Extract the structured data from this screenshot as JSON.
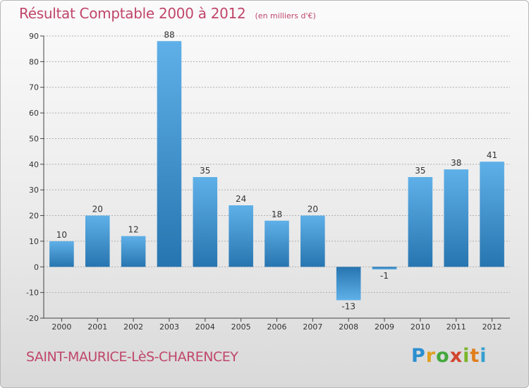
{
  "header": {
    "title": "Résultat Comptable 2000 à 2012",
    "unit": "(en milliers d'€)"
  },
  "footer": {
    "commune": "SAINT-MAURICE-LèS-CHARENCEY",
    "logo": [
      "P",
      "r",
      "o",
      "x",
      "i",
      "t",
      "i"
    ]
  },
  "colors": {
    "title": "#c0466a",
    "bar_top": "#5fb0e8",
    "bar_bottom": "#2775b0",
    "grid": "#b0b0b0"
  },
  "chart_data": {
    "type": "bar",
    "title": "Résultat Comptable 2000 à 2012",
    "xlabel": "",
    "ylabel": "(en milliers d'€)",
    "categories": [
      "2000",
      "2001",
      "2002",
      "2003",
      "2004",
      "2005",
      "2006",
      "2007",
      "2008",
      "2009",
      "2010",
      "2011",
      "2012"
    ],
    "values": [
      10,
      20,
      12,
      88,
      35,
      24,
      18,
      20,
      -13,
      -1,
      35,
      38,
      41
    ],
    "data_labels": [
      "10",
      "20",
      "12",
      "88",
      "35",
      "24",
      "18",
      "20",
      "-13",
      "-1",
      "35",
      "38",
      "41"
    ],
    "ylim": [
      -20,
      90
    ],
    "yticks": [
      -20,
      -10,
      0,
      10,
      20,
      30,
      40,
      50,
      60,
      70,
      80,
      90
    ],
    "ytick_labels": [
      "-20",
      "-10",
      "0",
      "10",
      "20",
      "30",
      "40",
      "50",
      "60",
      "70",
      "80",
      "90"
    ],
    "grid": true,
    "legend": "none"
  }
}
